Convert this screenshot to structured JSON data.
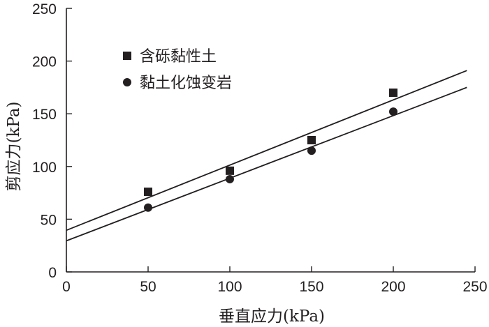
{
  "chart_data": {
    "type": "scatter",
    "xlabel": "垂直应力(kPa)",
    "ylabel": "剪应力(kPa)",
    "xlim": [
      0,
      250
    ],
    "ylim": [
      0,
      250
    ],
    "xticks": [
      0,
      50,
      100,
      150,
      200,
      250
    ],
    "yticks": [
      0,
      50,
      100,
      150,
      200,
      250
    ],
    "grid": false,
    "legend_position": "top-left",
    "series": [
      {
        "name": "含砾黏性土",
        "marker": "square",
        "color": "#231f20",
        "points": [
          [
            50,
            76
          ],
          [
            100,
            96
          ],
          [
            150,
            125
          ],
          [
            200,
            170
          ]
        ],
        "fit_line": {
          "x": [
            0,
            245
          ],
          "y": [
            39.5,
            191
          ]
        }
      },
      {
        "name": "黏土化蚀变岩",
        "marker": "circle",
        "color": "#231f20",
        "points": [
          [
            50,
            61
          ],
          [
            100,
            88
          ],
          [
            150,
            115
          ],
          [
            200,
            152
          ]
        ],
        "fit_line": {
          "x": [
            0,
            245
          ],
          "y": [
            29.5,
            175
          ]
        }
      }
    ]
  }
}
